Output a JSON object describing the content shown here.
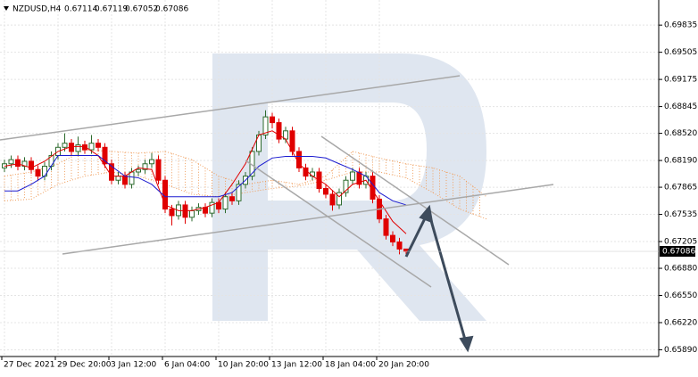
{
  "chart_data": {
    "type": "candlestick",
    "title": "NZDUSD,H4",
    "header_values": {
      "open": 0.67114,
      "high": 0.67119,
      "low": 0.67052,
      "close": 0.67086
    },
    "categories": [
      "27 Dec 2021",
      null,
      null,
      null,
      null,
      null,
      null,
      null,
      "29 Dec 20:00",
      null,
      null,
      null,
      null,
      null,
      null,
      null,
      "3 Jan 12:00",
      null,
      null,
      null,
      null,
      null,
      null,
      null,
      "6 Jan 04:00",
      null,
      null,
      null,
      null,
      null,
      null,
      null,
      "10 Jan 20:00",
      null,
      null,
      null,
      null,
      null,
      null,
      null,
      "13 Jan 12:00",
      null,
      null,
      null,
      null,
      null,
      null,
      null,
      "18 Jan 04:00",
      null,
      null,
      null,
      null,
      null,
      null,
      null,
      "20 Jan 20:00",
      null,
      null,
      null,
      null
    ],
    "open": [
      0.681,
      0.6815,
      0.682,
      0.6812,
      0.6818,
      0.6808,
      0.68,
      0.6812,
      0.6825,
      0.6835,
      0.684,
      0.683,
      0.6838,
      0.6832,
      0.684,
      0.6835,
      0.6815,
      0.6795,
      0.68,
      0.679,
      0.6805,
      0.6808,
      0.6815,
      0.682,
      0.6795,
      0.676,
      0.6752,
      0.6765,
      0.675,
      0.6758,
      0.6762,
      0.6755,
      0.6768,
      0.676,
      0.6775,
      0.677,
      0.679,
      0.68,
      0.683,
      0.685,
      0.6872,
      0.6865,
      0.6845,
      0.6855,
      0.683,
      0.681,
      0.68,
      0.6805,
      0.6785,
      0.6778,
      0.6765,
      0.678,
      0.6795,
      0.6805,
      0.679,
      0.68,
      0.6772,
      0.6748,
      0.6728,
      0.672,
      0.67114
    ],
    "high": [
      0.682,
      0.6825,
      0.6825,
      0.6823,
      0.6823,
      0.6813,
      0.6817,
      0.683,
      0.684,
      0.6852,
      0.6845,
      0.6848,
      0.6843,
      0.685,
      0.6845,
      0.684,
      0.682,
      0.6805,
      0.6805,
      0.681,
      0.6813,
      0.682,
      0.6828,
      0.6825,
      0.68,
      0.6765,
      0.677,
      0.677,
      0.6763,
      0.6767,
      0.6767,
      0.6773,
      0.6773,
      0.678,
      0.678,
      0.6795,
      0.6805,
      0.6835,
      0.6855,
      0.688,
      0.6877,
      0.687,
      0.686,
      0.686,
      0.6835,
      0.6815,
      0.681,
      0.681,
      0.679,
      0.6783,
      0.6785,
      0.68,
      0.681,
      0.681,
      0.6805,
      0.6805,
      0.6777,
      0.6753,
      0.6733,
      0.6725,
      0.67119
    ],
    "low": [
      0.6805,
      0.681,
      0.6807,
      0.6807,
      0.6803,
      0.6795,
      0.6795,
      0.6807,
      0.682,
      0.683,
      0.6825,
      0.6825,
      0.6827,
      0.6827,
      0.683,
      0.681,
      0.679,
      0.679,
      0.6785,
      0.6785,
      0.68,
      0.6803,
      0.681,
      0.679,
      0.6755,
      0.674,
      0.6747,
      0.6742,
      0.6745,
      0.6753,
      0.675,
      0.675,
      0.6755,
      0.6755,
      0.6765,
      0.6765,
      0.6785,
      0.6795,
      0.6825,
      0.6845,
      0.6858,
      0.684,
      0.684,
      0.6825,
      0.6805,
      0.6795,
      0.6795,
      0.678,
      0.6773,
      0.6758,
      0.676,
      0.6775,
      0.679,
      0.6785,
      0.6785,
      0.6767,
      0.6743,
      0.6723,
      0.6715,
      0.6705,
      0.67052
    ],
    "close": [
      0.6815,
      0.682,
      0.6812,
      0.6818,
      0.6808,
      0.68,
      0.6812,
      0.6825,
      0.6835,
      0.684,
      0.683,
      0.6838,
      0.6832,
      0.684,
      0.6835,
      0.6815,
      0.6795,
      0.68,
      0.679,
      0.6805,
      0.6808,
      0.6815,
      0.682,
      0.6795,
      0.676,
      0.6752,
      0.6765,
      0.675,
      0.6758,
      0.6762,
      0.6755,
      0.6768,
      0.676,
      0.6775,
      0.677,
      0.679,
      0.68,
      0.683,
      0.685,
      0.6872,
      0.6865,
      0.6845,
      0.6855,
      0.683,
      0.681,
      0.68,
      0.6805,
      0.6785,
      0.6778,
      0.6765,
      0.678,
      0.6795,
      0.6805,
      0.679,
      0.68,
      0.6772,
      0.6748,
      0.6728,
      0.672,
      0.67114,
      0.67086
    ],
    "up_color": "#2e6b2e",
    "down_color": "#e00000",
    "line_x": [
      0,
      2,
      4,
      6,
      8,
      10,
      12,
      14,
      16,
      18,
      20,
      22,
      24,
      26,
      28,
      30,
      32,
      34,
      36,
      38,
      40,
      42,
      44,
      46,
      48,
      50,
      52,
      54,
      56,
      58,
      60
    ],
    "lines": [
      {
        "color": "#e00000",
        "values": [
          0.6812,
          0.6815,
          0.681,
          0.6818,
          0.683,
          0.6836,
          0.6836,
          0.6825,
          0.68,
          0.68,
          0.681,
          0.6808,
          0.6765,
          0.6758,
          0.6758,
          0.6762,
          0.6768,
          0.679,
          0.6815,
          0.685,
          0.6855,
          0.6845,
          0.6815,
          0.68,
          0.679,
          0.6775,
          0.679,
          0.6795,
          0.677,
          0.6745,
          0.673
        ]
      },
      {
        "color": "#1c1cd0",
        "values": [
          0.6782,
          0.6782,
          0.679,
          0.68,
          0.6825,
          0.6825,
          0.6825,
          0.6825,
          0.6812,
          0.68,
          0.6798,
          0.679,
          0.6775,
          0.6775,
          0.6775,
          0.6775,
          0.6775,
          0.678,
          0.6795,
          0.6812,
          0.6822,
          0.6824,
          0.6824,
          0.6824,
          0.6822,
          0.6815,
          0.6808,
          0.68,
          0.678,
          0.677,
          0.6765
        ]
      }
    ],
    "cloud": {
      "color": "#f0a060",
      "x": [
        0,
        4,
        8,
        12,
        16,
        20,
        24,
        28,
        32,
        36,
        40,
        44,
        48,
        52,
        56,
        60,
        64,
        68,
        72
      ],
      "upper": [
        0.68,
        0.6805,
        0.6815,
        0.6832,
        0.683,
        0.6828,
        0.683,
        0.682,
        0.68,
        0.679,
        0.6795,
        0.679,
        0.68,
        0.683,
        0.6822,
        0.6815,
        0.681,
        0.68,
        0.6775
      ],
      "lower": [
        0.677,
        0.6772,
        0.679,
        0.68,
        0.6805,
        0.68,
        0.679,
        0.6778,
        0.6775,
        0.678,
        0.6785,
        0.6788,
        0.6795,
        0.6805,
        0.6805,
        0.6798,
        0.678,
        0.676,
        0.6748
      ]
    },
    "ylim": [
      0.657,
      0.7014
    ],
    "yticks": [
      0.69835,
      0.69505,
      0.69175,
      0.68845,
      {
        "value": 0.6852,
        "label": "0.68520"
      },
      {
        "value": 0.6819,
        "label": "0.68190"
      },
      0.67865,
      0.67535,
      0.67205,
      {
        "value": 0.6688,
        "label": "0.66880"
      },
      {
        "value": 0.6655,
        "label": "0.66550"
      },
      {
        "value": 0.6622,
        "label": "0.66220"
      },
      {
        "value": 0.6589,
        "label": "0.65890"
      }
    ],
    "grid": true
  }
}
